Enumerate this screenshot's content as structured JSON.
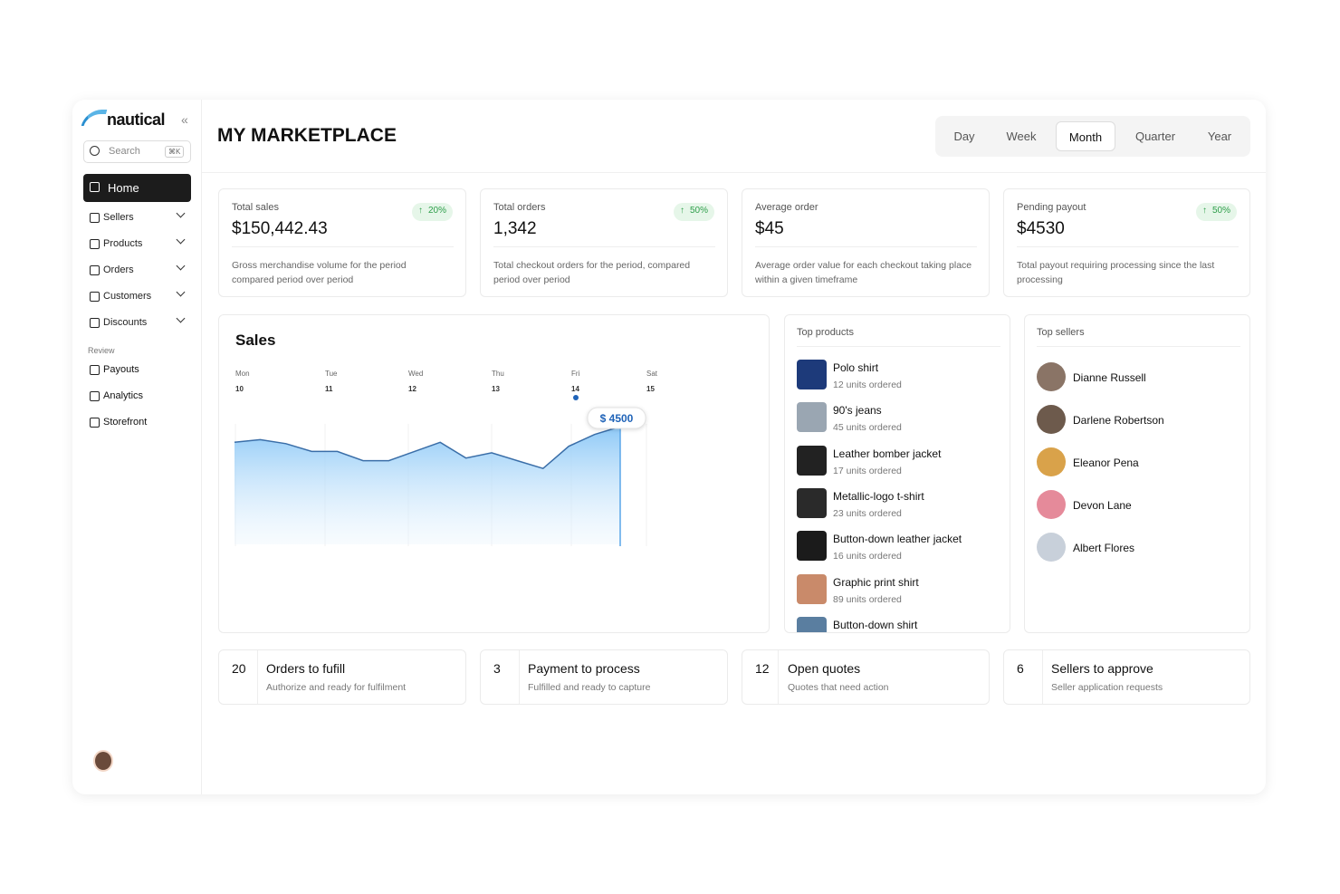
{
  "sidebar": {
    "logo": "nautical",
    "search": "Search",
    "shortcut": "⌘K",
    "nav": [
      "Home",
      "Sellers",
      "Products",
      "Orders",
      "Customers",
      "Discounts"
    ],
    "section": "Review",
    "review_nav": [
      "Payouts",
      "Analytics",
      "Storefront"
    ]
  },
  "header": {
    "title": "MY MARKETPLACE",
    "periods": [
      "Day",
      "Week",
      "Month",
      "Quarter",
      "Year"
    ],
    "selected_period": 2
  },
  "stats": [
    {
      "label": "Total sales",
      "change": "20%",
      "value": "$150,442.43",
      "description": "Gross merchandise volume for the period compared period over period"
    },
    {
      "label": "Total orders",
      "change": "50%",
      "value": "1,342",
      "description": "Total checkout orders for the period, compared period over period"
    },
    {
      "label": "Average order",
      "value": "$45",
      "description": "Average order value for each checkout taking place within a given timeframe"
    },
    {
      "label": "Pending payout",
      "change": "50%",
      "value": "$4530",
      "description": "Total payout requiring processing since the last processing"
    }
  ],
  "sales": {
    "title": "Sales",
    "days": [
      {
        "day": "Mon",
        "date": 10
      },
      {
        "day": "Tue",
        "date": 11
      },
      {
        "day": "Wed",
        "date": 12
      },
      {
        "day": "Thu",
        "date": 13
      },
      {
        "day": "Fri",
        "date": 14
      },
      {
        "day": "Sat",
        "date": 15
      }
    ],
    "values": [
      3900,
      4000,
      3850,
      3550,
      3550,
      3200,
      3200,
      3550,
      3900,
      3300,
      3500,
      3200,
      2900,
      3750,
      4200,
      4500
    ],
    "peak_label": "$ 4500"
  },
  "top_products": {
    "title": "Top products",
    "items": [
      {
        "name": "Polo shirt",
        "units": "12 units ordered"
      },
      {
        "name": "90's jeans",
        "units": "45 units ordered"
      },
      {
        "name": "Leather bomber jacket",
        "units": "17 units ordered"
      },
      {
        "name": "Metallic-logo t-shirt",
        "units": "23 units ordered"
      },
      {
        "name": "Button-down leather jacket",
        "units": "16 units ordered"
      },
      {
        "name": "Graphic print shirt",
        "units": "89 units ordered"
      },
      {
        "name": "Button-down shirt"
      }
    ]
  },
  "top_sellers": {
    "title": "Top sellers",
    "items": [
      "Dianne Russell",
      "Darlene Robertson",
      "Eleanor Pena",
      "Devon Lane",
      "Albert Flores"
    ]
  },
  "tasks": [
    {
      "count": 20,
      "title": "Orders to fufill",
      "description": "Authorize and ready for fulfilment"
    },
    {
      "count": 3,
      "title": "Payment to process",
      "description": "Fulfilled and ready to capture"
    },
    {
      "count": 12,
      "title": "Open quotes",
      "description": "Quotes that need action"
    },
    {
      "count": 6,
      "title": "Sellers to approve",
      "description": "Seller application requests"
    }
  ]
}
